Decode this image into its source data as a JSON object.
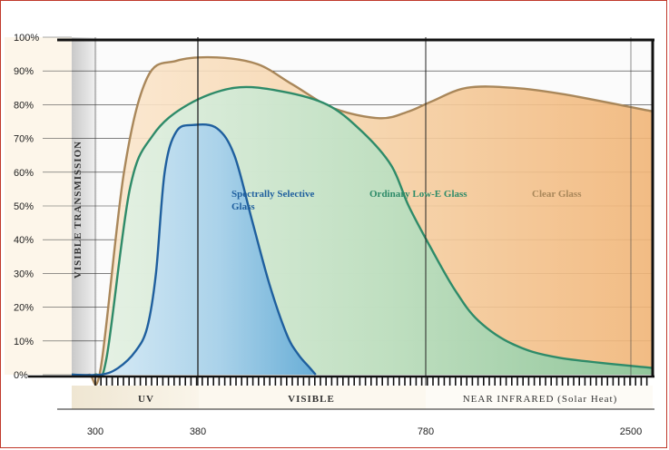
{
  "chart_data": {
    "type": "area",
    "ylabel": "VISIBLE TRANSMISSION",
    "y_ticks": [
      "0%",
      "10%",
      "20%",
      "30%",
      "40%",
      "50%",
      "60%",
      "70%",
      "80%",
      "90%",
      "100%"
    ],
    "ylim": [
      0,
      100
    ],
    "x_ticks": [
      "300",
      "380",
      "780",
      "2500"
    ],
    "bands": [
      "UV",
      "VISIBLE",
      "NEAR INFRARED (Solar Heat)"
    ],
    "grid": true,
    "series": [
      {
        "name": "Clear Glass",
        "color": "#a9875a",
        "fill": "#f3c48f",
        "points": [
          [
            0.0,
            0
          ],
          [
            0.03,
            0
          ],
          [
            0.05,
            2
          ],
          [
            0.09,
            60
          ],
          [
            0.13,
            88
          ],
          [
            0.18,
            93
          ],
          [
            0.25,
            94
          ],
          [
            0.32,
            92
          ],
          [
            0.38,
            86
          ],
          [
            0.45,
            79
          ],
          [
            0.53,
            76
          ],
          [
            0.58,
            78
          ],
          [
            0.62,
            81
          ],
          [
            0.68,
            85
          ],
          [
            0.76,
            85
          ],
          [
            0.85,
            83
          ],
          [
            1.0,
            78
          ]
        ]
      },
      {
        "name": "Ordinary Low-E Glass",
        "color": "#2e8b69",
        "fill": "#9fd0a9",
        "points": [
          [
            0.0,
            0
          ],
          [
            0.04,
            0
          ],
          [
            0.06,
            5
          ],
          [
            0.1,
            55
          ],
          [
            0.14,
            71
          ],
          [
            0.2,
            80
          ],
          [
            0.28,
            85
          ],
          [
            0.36,
            84
          ],
          [
            0.44,
            80
          ],
          [
            0.5,
            72
          ],
          [
            0.55,
            62
          ],
          [
            0.58,
            50
          ],
          [
            0.62,
            37
          ],
          [
            0.66,
            25
          ],
          [
            0.7,
            16
          ],
          [
            0.76,
            9
          ],
          [
            0.84,
            5
          ],
          [
            1.0,
            2
          ]
        ]
      },
      {
        "name": "Spectrally Selective Glass",
        "color": "#1f5f9e",
        "fill": "#7fb5dc",
        "points": [
          [
            0.0,
            0
          ],
          [
            0.05,
            0
          ],
          [
            0.08,
            2
          ],
          [
            0.11,
            7
          ],
          [
            0.13,
            14
          ],
          [
            0.145,
            30
          ],
          [
            0.16,
            60
          ],
          [
            0.18,
            72
          ],
          [
            0.21,
            74
          ],
          [
            0.25,
            73
          ],
          [
            0.28,
            65
          ],
          [
            0.31,
            46
          ],
          [
            0.34,
            27
          ],
          [
            0.37,
            12
          ],
          [
            0.39,
            6
          ],
          [
            0.41,
            2
          ],
          [
            0.42,
            0
          ]
        ]
      }
    ]
  }
}
